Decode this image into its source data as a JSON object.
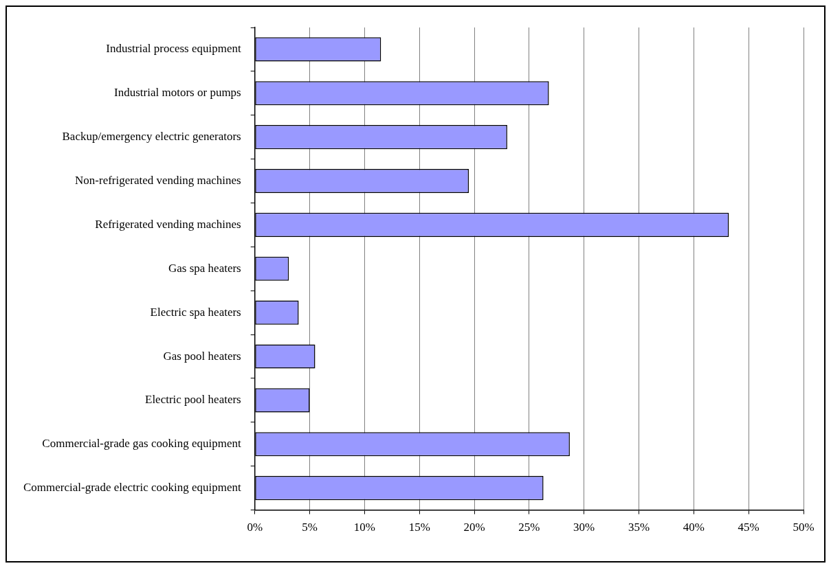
{
  "chart_data": {
    "type": "bar",
    "orientation": "horizontal",
    "categories": [
      "Industrial process equipment",
      "Industrial motors or pumps",
      "Backup/emergency electric generators",
      "Non-refrigerated vending machines",
      "Refrigerated vending machines",
      "Gas spa heaters",
      "Electric spa heaters",
      "Gas pool heaters",
      "Electric pool heaters",
      "Commercial-grade gas cooking equipment",
      "Commercial-grade electric cooking equipment"
    ],
    "values": [
      11.5,
      26.8,
      23.0,
      19.5,
      43.2,
      3.1,
      4.0,
      5.5,
      5.0,
      28.7,
      26.3
    ],
    "color": "#9999ff",
    "xlim": [
      0,
      50
    ],
    "xticks": [
      {
        "value": 0,
        "label": "0%"
      },
      {
        "value": 5,
        "label": "5%"
      },
      {
        "value": 10,
        "label": "10%"
      },
      {
        "value": 15,
        "label": "15%"
      },
      {
        "value": 20,
        "label": "20%"
      },
      {
        "value": 25,
        "label": "25%"
      },
      {
        "value": 30,
        "label": "30%"
      },
      {
        "value": 35,
        "label": "35%"
      },
      {
        "value": 40,
        "label": "40%"
      },
      {
        "value": 45,
        "label": "45%"
      },
      {
        "value": 50,
        "label": "50%"
      }
    ],
    "grid": "x",
    "legend": false
  }
}
